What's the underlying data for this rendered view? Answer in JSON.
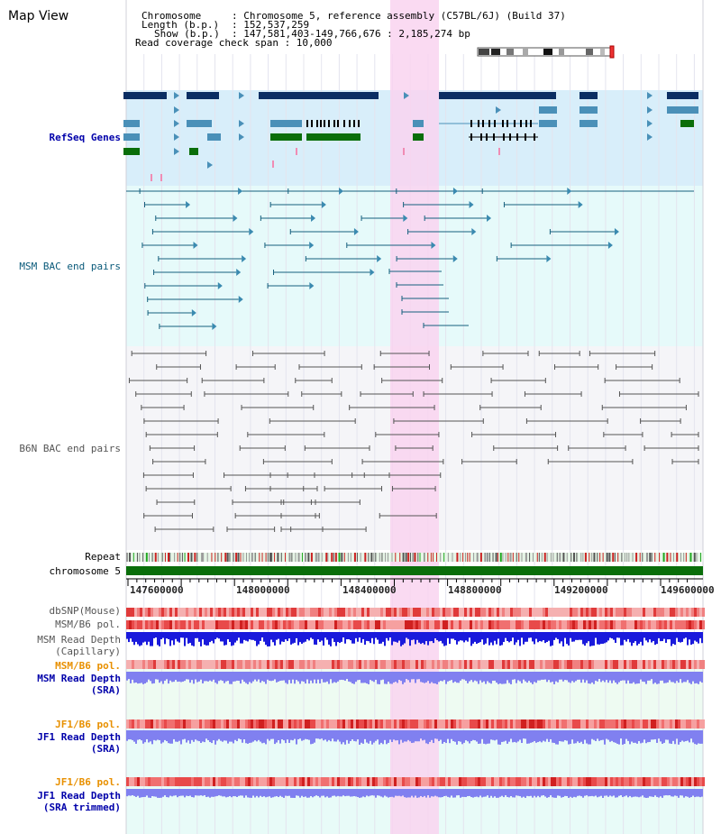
{
  "title": "Map View",
  "info": {
    "chromosome_key": "Chromosome",
    "chromosome_value": ": Chromosome 5, reference assembly (C57BL/6J) (Build 37)",
    "length_key": "Length (b.p.)",
    "length_value": ": 152,537,259",
    "show_key": "Show (b.p.)",
    "show_value": ": 147,581,403-149,766,676 : 2,185,274 bp",
    "coverage_line": "Read coverage check span : 10,000"
  },
  "tracks": {
    "refseq": "RefSeq Genes",
    "msm_bac": "MSM BAC end pairs",
    "b6n_bac": "B6N BAC end pairs",
    "repeat": "Repeat",
    "chromosome": "chromosome 5",
    "dbsnp": "dbSNP(Mouse)",
    "msm_b6_pol": "MSM/B6 pol.",
    "msm_depth_cap_1": "MSM Read Depth",
    "msm_depth_cap_2": "(Capillary)",
    "msm_b6_pol2": "MSM/B6 pol.",
    "msm_depth_sra_1": "MSM Read Depth",
    "msm_depth_sra_2": "(SRA)",
    "jf1_b6_pol": "JF1/B6 pol.",
    "jf1_depth_1": "JF1 Read Depth",
    "jf1_depth_2": "(SRA)",
    "jf1_b6_pol2": "JF1/B6 pol.",
    "jf1_trim_1": "JF1 Read Depth",
    "jf1_trim_2": "(SRA trimmed)"
  },
  "axis": {
    "ticks": [
      "147600000",
      "148000000",
      "148400000",
      "148800000",
      "149200000",
      "149600000"
    ]
  },
  "colors": {
    "highlight": "#f9d4f0",
    "refseq_bg": "#d8eefa",
    "msm_bg": "#e6fafa",
    "b6n_bg": "#f5f5f8",
    "gene_dark": "#0b2e63",
    "gene_mid": "#4a90b8",
    "gene_green": "#0a6e0a",
    "chrom_green": "#0a6e0a",
    "depth_blue": "#1a1adc",
    "depth_light": "#8080f0"
  }
}
